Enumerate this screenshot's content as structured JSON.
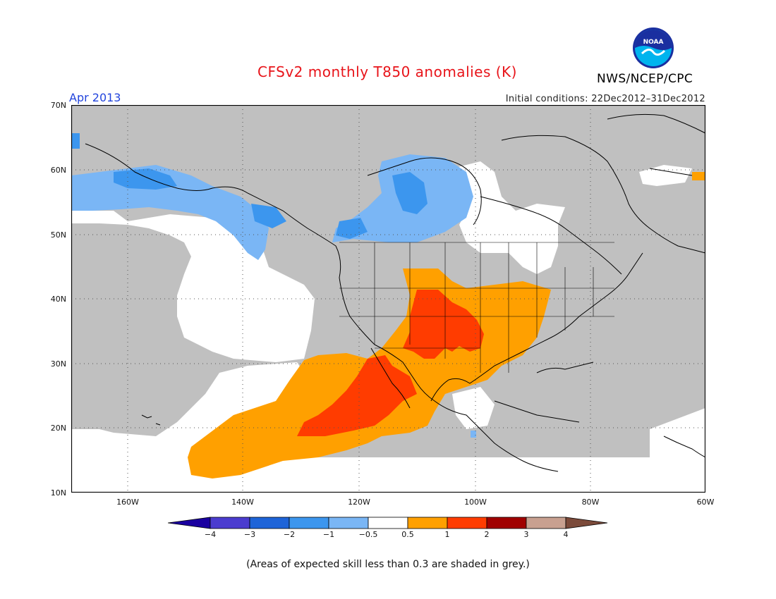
{
  "header": {
    "title": "CFSv2 monthly T850 anomalies (K)",
    "month": "Apr 2013",
    "initial_conditions": "Initial conditions: 22Dec2012–31Dec2012",
    "agency": "NWS/NCEP/CPC",
    "logo_text": "NOAA"
  },
  "map": {
    "region": "North America and eastern North Pacific",
    "lat_labels": [
      "70N",
      "60N",
      "50N",
      "40N",
      "30N",
      "20N",
      "10N"
    ],
    "lon_labels": [
      "160W",
      "140W",
      "120W",
      "100W",
      "80W",
      "60W"
    ],
    "colors": {
      "low_skill": "#c0c0c0",
      "ocean_white": "#ffffff",
      "pos_0_5_1": "#ffa000",
      "pos_1_2": "#ff3c00",
      "neg_0_5_1": "#7ab6f5",
      "neg_1_2": "#3c96ee",
      "coast": "#000000"
    }
  },
  "colorbar": {
    "labels": [
      "−4",
      "−3",
      "−2",
      "−1",
      "−0.5",
      "0.5",
      "1",
      "2",
      "3",
      "4"
    ],
    "colors": [
      "#1a00a0",
      "#4b3ccf",
      "#1e64d8",
      "#3c96ee",
      "#7ab6f5",
      "#ffffff",
      "#ffa000",
      "#ff3c00",
      "#a00000",
      "#c8a090",
      "#7b4a3a"
    ]
  },
  "footnote": "(Areas of expected skill less than 0.3 are shaded in grey.)"
}
